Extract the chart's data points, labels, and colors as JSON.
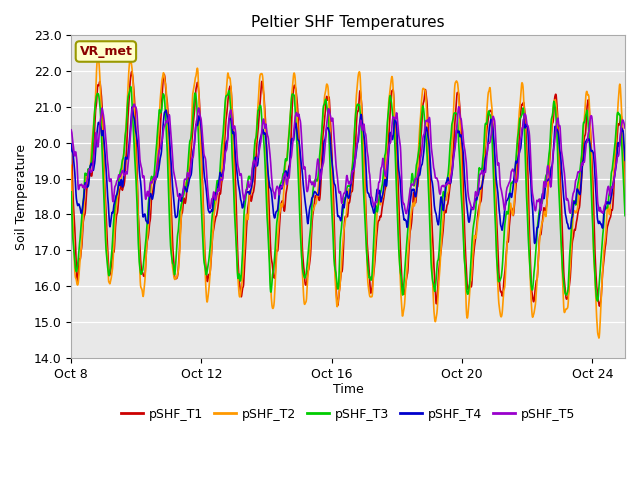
{
  "title": "Peltier SHF Temperatures",
  "xlabel": "Time",
  "ylabel": "Soil Temperature",
  "ylim": [
    14.0,
    23.0
  ],
  "yticks": [
    14.0,
    15.0,
    16.0,
    17.0,
    18.0,
    19.0,
    20.0,
    21.0,
    22.0,
    23.0
  ],
  "x_tick_positions": [
    0,
    4,
    8,
    12,
    16
  ],
  "x_tick_labels": [
    "Oct 8",
    "Oct 12",
    "Oct 16",
    "Oct 20",
    "Oct 24"
  ],
  "series_names": [
    "pSHF_T1",
    "pSHF_T2",
    "pSHF_T3",
    "pSHF_T4",
    "pSHF_T5"
  ],
  "annotation_text": "VR_met",
  "background_color": "#ffffff",
  "plot_bg_color": "#e8e8e8",
  "shaded_band_low": 17.0,
  "shaded_band_high": 20.5,
  "legend_colors": [
    "#cc0000",
    "#ff9900",
    "#00cc00",
    "#0000cc",
    "#9900cc"
  ],
  "line_width": 1.2,
  "days": 17,
  "n_points": 1700
}
